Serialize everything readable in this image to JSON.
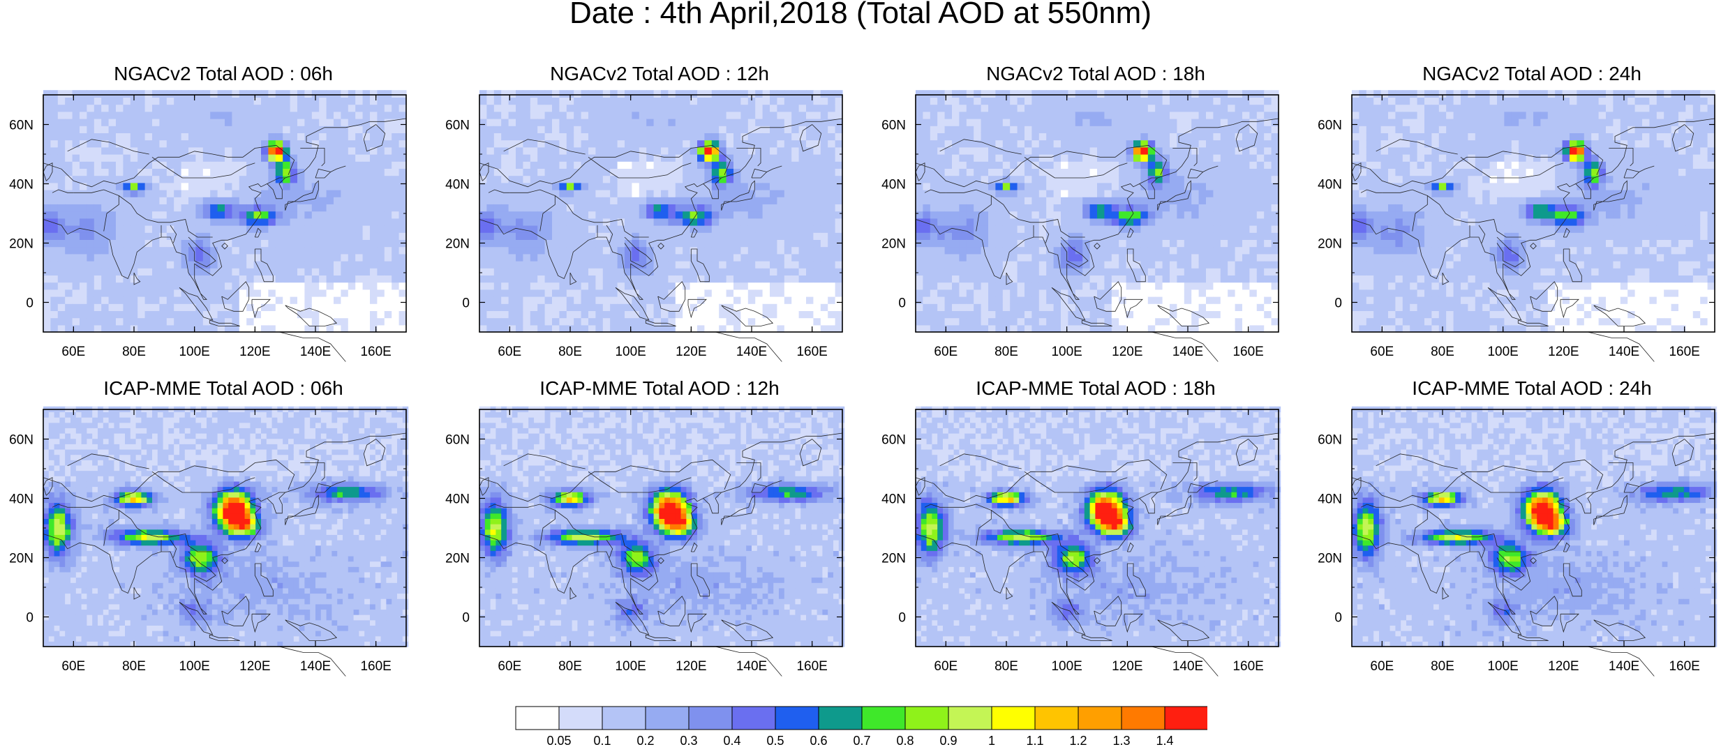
{
  "title": "Date : 4th April,2018 (Total AOD at 550nm)",
  "panels": [
    {
      "title": "NGACv2 Total AOD : 06h",
      "model": "ngac",
      "hour": 6
    },
    {
      "title": "NGACv2 Total AOD : 12h",
      "model": "ngac",
      "hour": 12
    },
    {
      "title": "NGACv2 Total AOD : 18h",
      "model": "ngac",
      "hour": 18
    },
    {
      "title": "NGACv2 Total AOD : 24h",
      "model": "ngac",
      "hour": 24
    },
    {
      "title": "ICAP-MME Total AOD : 06h",
      "model": "icap",
      "hour": 6
    },
    {
      "title": "ICAP-MME Total AOD : 12h",
      "model": "icap",
      "hour": 12
    },
    {
      "title": "ICAP-MME Total AOD : 18h",
      "model": "icap",
      "hour": 18
    },
    {
      "title": "ICAP-MME Total AOD : 24h",
      "model": "icap",
      "hour": 24
    }
  ],
  "map": {
    "lon_range": [
      50,
      170
    ],
    "lat_range": [
      -10,
      70
    ],
    "lon_ticks": [
      60,
      80,
      100,
      120,
      140,
      160
    ],
    "lon_tick_labels": [
      "60E",
      "80E",
      "100E",
      "120E",
      "140E",
      "160E"
    ],
    "lat_ticks": [
      0,
      20,
      40,
      60
    ],
    "lat_tick_labels": [
      "0",
      "20N",
      "40N",
      "60N"
    ]
  },
  "colorbar": {
    "labels": [
      "0.05",
      "0.1",
      "0.2",
      "0.3",
      "0.4",
      "0.5",
      "0.6",
      "0.7",
      "0.8",
      "0.9",
      "1",
      "1.1",
      "1.2",
      "1.3",
      "1.4"
    ],
    "colors": [
      "#ffffff",
      "#d4dcfa",
      "#b4c4f6",
      "#96abf2",
      "#7f91ee",
      "#6a6ff0",
      "#1f5fef",
      "#0e9a8c",
      "#3fe82a",
      "#8ff21a",
      "#c4f555",
      "#ffff00",
      "#ffc400",
      "#ff9f00",
      "#ff7a00",
      "#ff1f10"
    ]
  }
}
